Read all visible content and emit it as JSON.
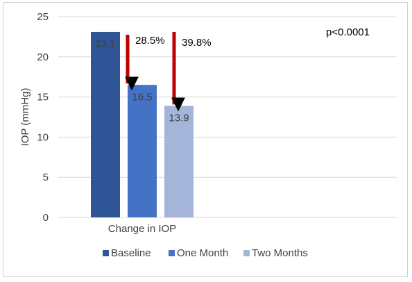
{
  "chart_data": {
    "type": "bar",
    "categories": [
      "Change in IOP"
    ],
    "series": [
      {
        "name": "Baseline",
        "values": [
          23.1
        ],
        "color": "#2f5597"
      },
      {
        "name": "One Month",
        "values": [
          16.5
        ],
        "color": "#4472c4"
      },
      {
        "name": "Two Months",
        "values": [
          13.9
        ],
        "color": "#a5b4d9"
      }
    ],
    "ylabel": "IOP (mmHg)",
    "xlabel": "",
    "ylim": [
      0,
      25
    ],
    "yticks": [
      0,
      5,
      10,
      15,
      20,
      25
    ],
    "grid": true,
    "legend": "bottom",
    "annotations": [
      {
        "text": "28.5%",
        "from_series": 0,
        "to_series": 1
      },
      {
        "text": "39.8%",
        "from_series": 0,
        "to_series": 2
      },
      {
        "text": "p<0.0001"
      }
    ],
    "arrow_color": "#c00000"
  }
}
